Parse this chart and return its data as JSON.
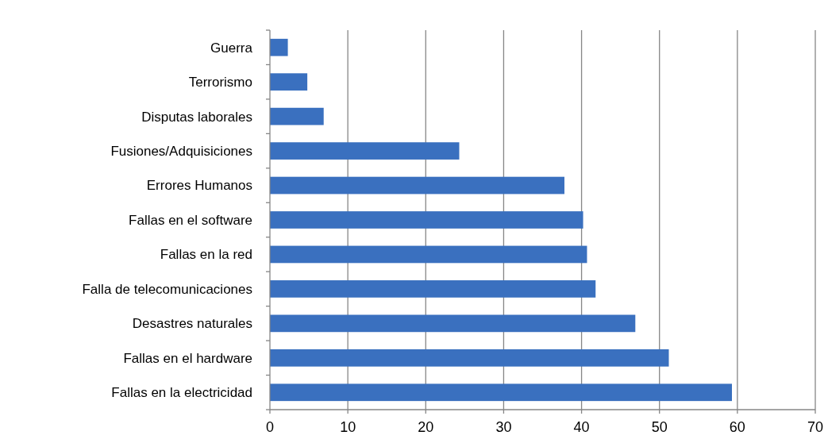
{
  "chart_data": {
    "type": "bar",
    "orientation": "horizontal",
    "categories": [
      "Guerra",
      "Terrorismo",
      "Disputas laborales",
      "Fusiones/Adquisiciones",
      "Errores Humanos",
      "Fallas en el software",
      "Fallas en la red",
      "Falla de telecomunicaciones",
      "Desastres naturales",
      "Fallas en el hardware",
      "Fallas en la electricidad"
    ],
    "values": [
      2.3,
      4.8,
      6.9,
      24.3,
      37.8,
      40.2,
      40.7,
      41.8,
      46.9,
      51.2,
      59.3
    ],
    "color": "#3a70bf",
    "xlim": [
      0,
      70
    ],
    "xticks": [
      0,
      10,
      20,
      30,
      40,
      50,
      60,
      70
    ],
    "grid": "x"
  }
}
